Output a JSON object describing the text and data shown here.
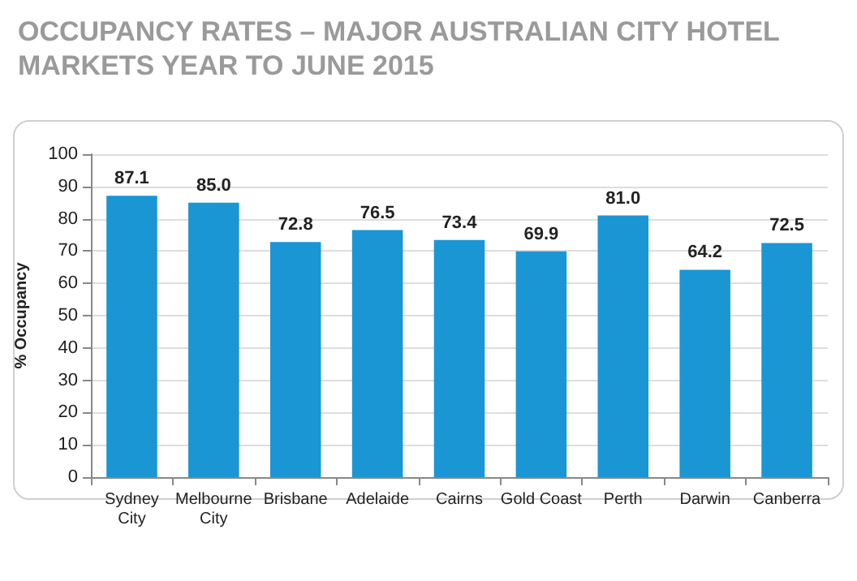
{
  "chart_data": {
    "type": "bar",
    "title": "OCCUPANCY RATES – MAJOR AUSTRALIAN CITY HOTEL\nMARKETS YEAR TO JUNE 2015",
    "ylabel": "% Occupancy",
    "categories": [
      "Sydney\nCity",
      "Melbourne\nCity",
      "Brisbane",
      "Adelaide",
      "Cairns",
      "Gold Coast",
      "Perth",
      "Darwin",
      "Canberra"
    ],
    "values": [
      87.1,
      85.0,
      72.8,
      76.5,
      73.4,
      69.9,
      81.0,
      64.2,
      72.5
    ],
    "value_labels": [
      "87.1",
      "85.0",
      "72.8",
      "76.5",
      "73.4",
      "69.9",
      "81.0",
      "64.2",
      "72.5"
    ],
    "color": "#1a96d4",
    "ylim": [
      0,
      100
    ],
    "yticks": [
      0,
      10,
      20,
      30,
      40,
      50,
      60,
      70,
      80,
      90,
      100
    ],
    "grid": "y"
  }
}
